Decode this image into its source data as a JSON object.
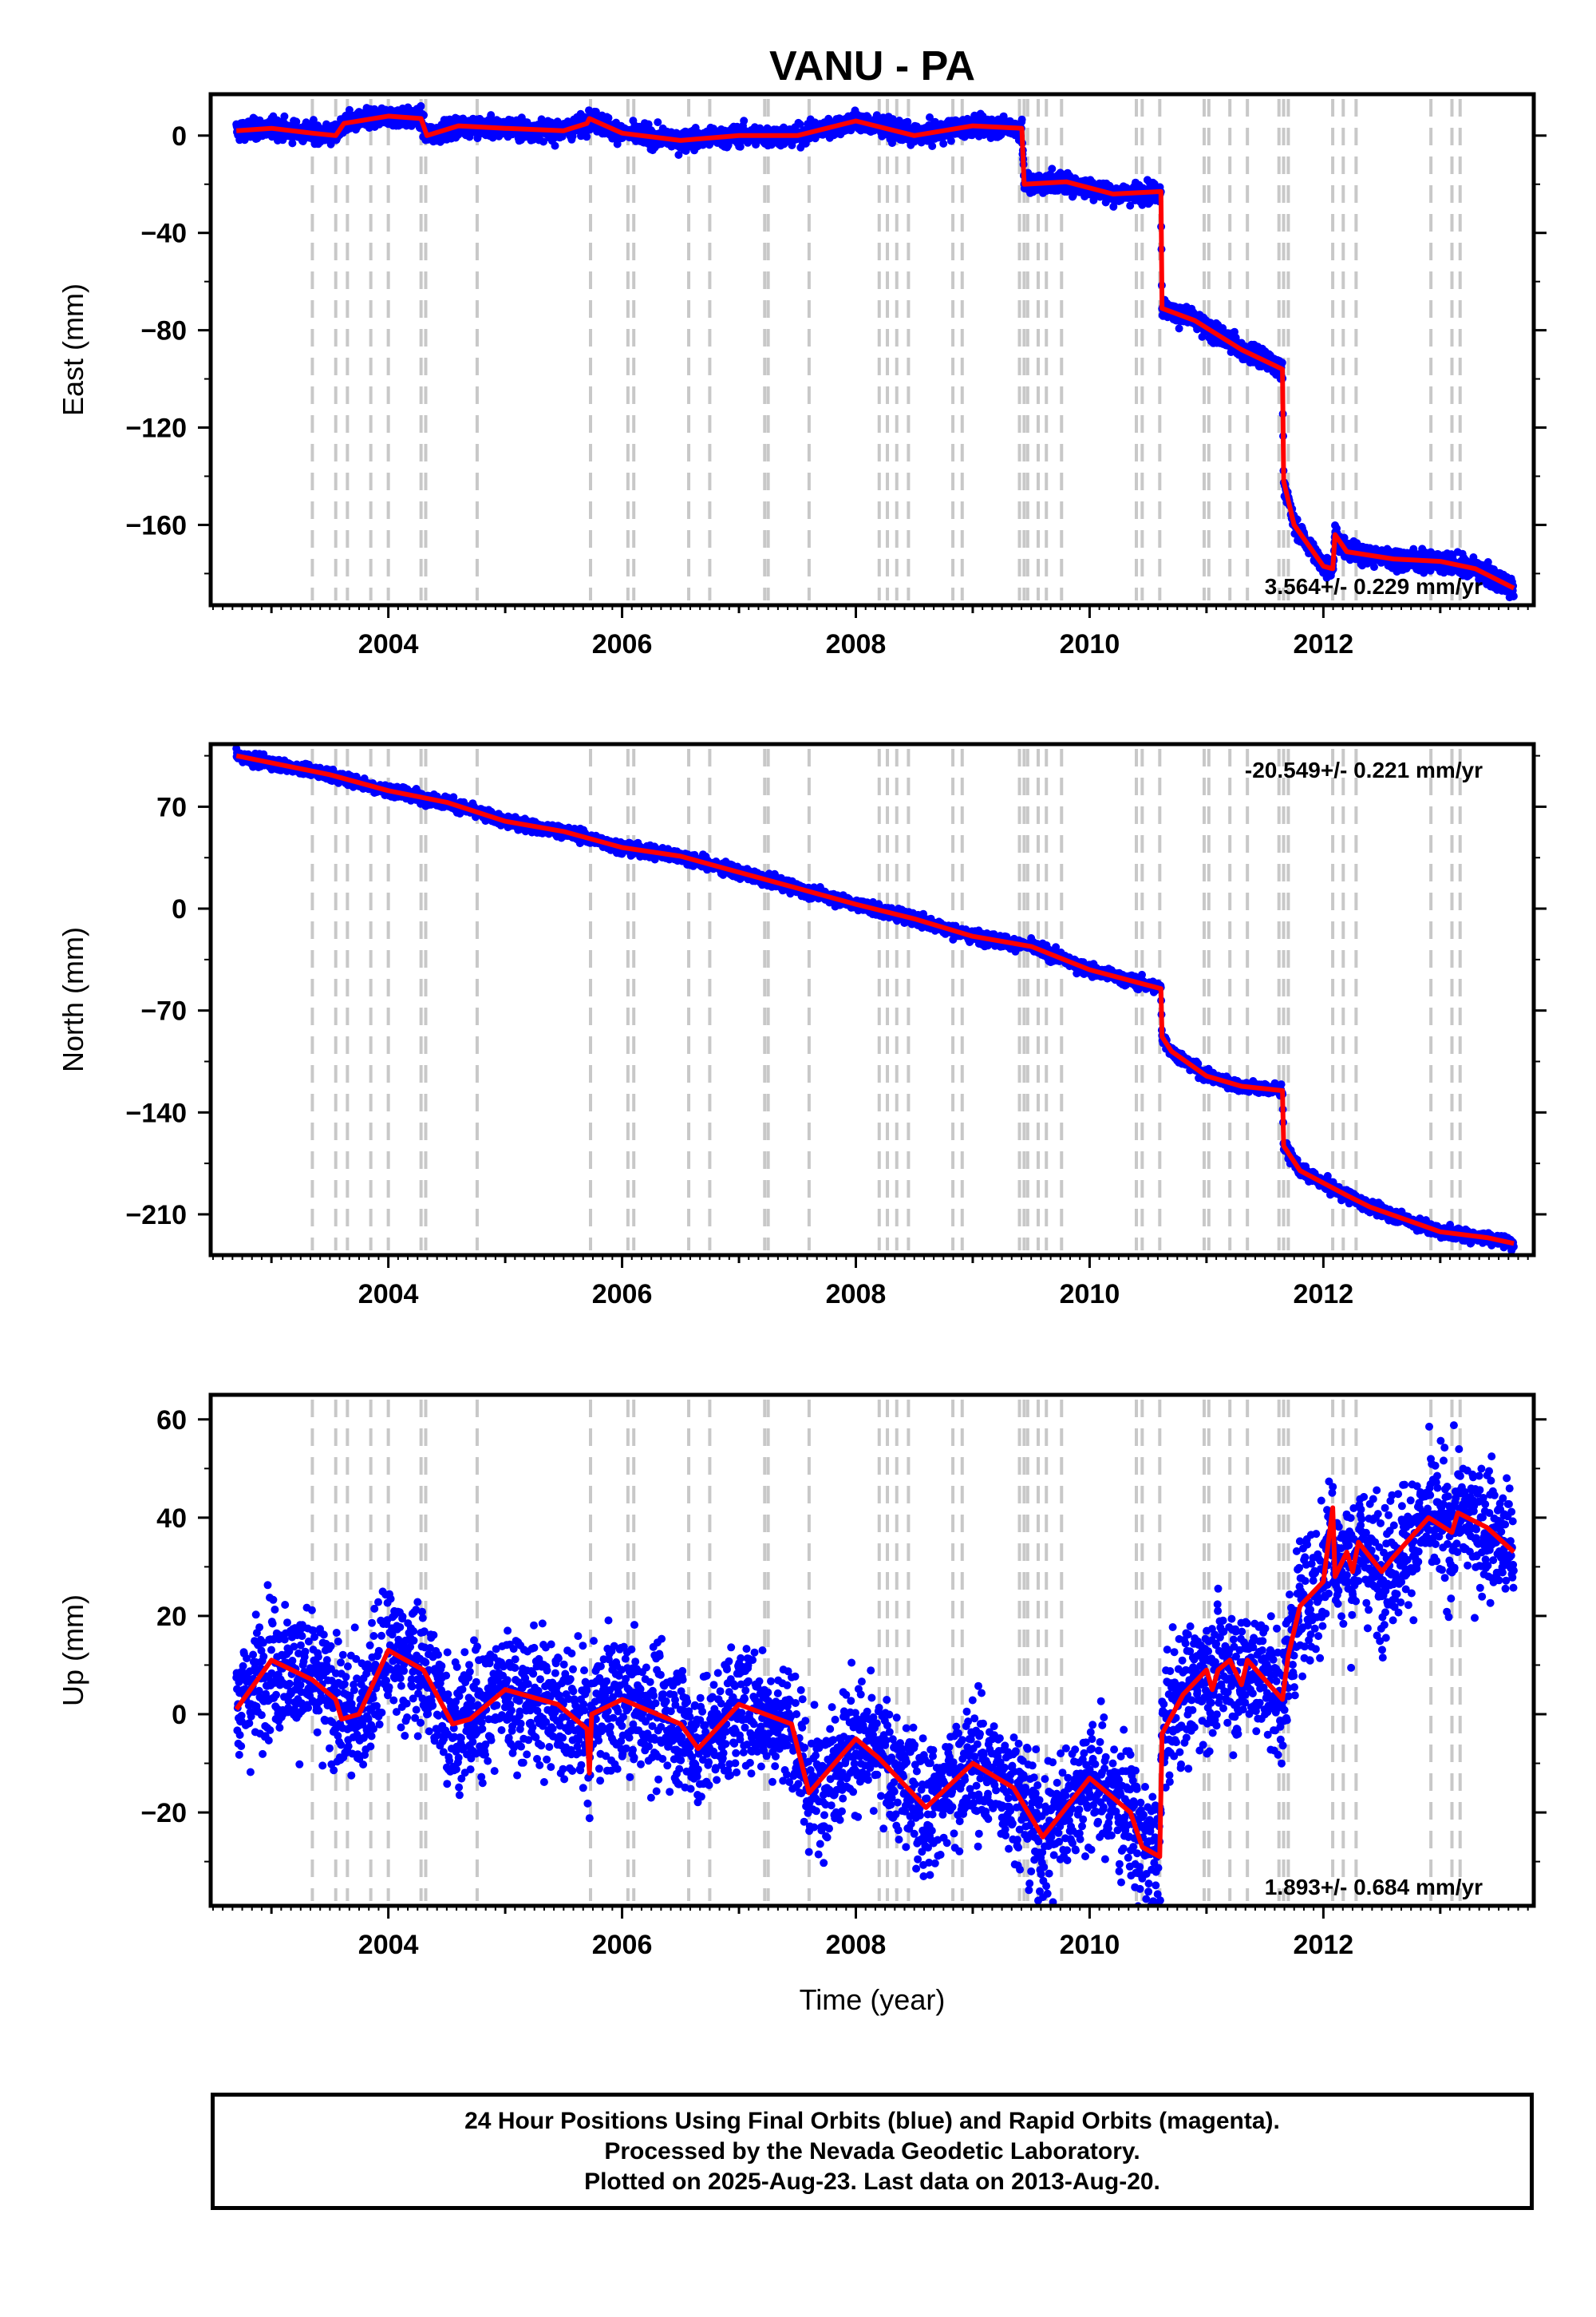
{
  "title": "VANU - PA",
  "colors": {
    "observation": "#0000ff",
    "model": "#ff0000",
    "event_line": "#c8c8c8",
    "frame": "#000000"
  },
  "chart_data": [
    {
      "type": "scatter",
      "component": "East",
      "ylabel": "East (mm)",
      "xlim": [
        2002.48,
        2013.8
      ],
      "ylim": [
        -193,
        17
      ],
      "yticks": [
        0,
        -40,
        -80,
        -120,
        -160
      ],
      "xticks": [
        2004,
        2006,
        2008,
        2010,
        2012
      ],
      "grid": false,
      "rate_label": "3.564+/- 0.229 mm/yr",
      "rate_position": "bottom-right",
      "noise_mm": 2.0,
      "model": [
        [
          2002.7,
          2
        ],
        [
          2003.0,
          3
        ],
        [
          2003.35,
          1
        ],
        [
          2003.55,
          0
        ],
        [
          2003.62,
          5
        ],
        [
          2004.0,
          8
        ],
        [
          2004.28,
          7
        ],
        [
          2004.33,
          0
        ],
        [
          2004.6,
          4
        ],
        [
          2005.0,
          3
        ],
        [
          2005.5,
          2
        ],
        [
          2005.7,
          5
        ],
        [
          2005.72,
          7
        ],
        [
          2006.0,
          1
        ],
        [
          2006.5,
          -2
        ],
        [
          2007.0,
          0
        ],
        [
          2007.5,
          0
        ],
        [
          2008.0,
          6
        ],
        [
          2008.5,
          0
        ],
        [
          2009.0,
          4
        ],
        [
          2009.42,
          3
        ],
        [
          2009.44,
          -20
        ],
        [
          2009.8,
          -19
        ],
        [
          2010.2,
          -24
        ],
        [
          2010.61,
          -23
        ],
        [
          2010.62,
          -71
        ],
        [
          2010.9,
          -76
        ],
        [
          2011.3,
          -88
        ],
        [
          2011.65,
          -96
        ],
        [
          2011.66,
          -142
        ],
        [
          2011.75,
          -160
        ],
        [
          2012.0,
          -177
        ],
        [
          2012.08,
          -178
        ],
        [
          2012.1,
          -164
        ],
        [
          2012.2,
          -171
        ],
        [
          2012.6,
          -174
        ],
        [
          2013.0,
          -175
        ],
        [
          2013.3,
          -178
        ],
        [
          2013.63,
          -186
        ]
      ]
    },
    {
      "type": "scatter",
      "component": "North",
      "ylabel": "North (mm)",
      "xlim": [
        2002.48,
        2013.8
      ],
      "ylim": [
        -238,
        113
      ],
      "yticks": [
        70,
        0,
        -70,
        -140,
        -210
      ],
      "xticks": [
        2004,
        2006,
        2008,
        2010,
        2012
      ],
      "grid": false,
      "rate_label": "-20.549+/- 0.221 mm/yr",
      "rate_position": "top-right",
      "noise_mm": 2.0,
      "model": [
        [
          2002.7,
          105
        ],
        [
          2003.5,
          92
        ],
        [
          2004.0,
          81
        ],
        [
          2004.5,
          73
        ],
        [
          2005.0,
          60
        ],
        [
          2005.5,
          53
        ],
        [
          2006.0,
          42
        ],
        [
          2006.5,
          36
        ],
        [
          2007.0,
          25
        ],
        [
          2007.5,
          14
        ],
        [
          2008.0,
          3
        ],
        [
          2008.5,
          -7
        ],
        [
          2009.0,
          -19
        ],
        [
          2009.5,
          -26
        ],
        [
          2010.0,
          -42
        ],
        [
          2010.61,
          -55
        ],
        [
          2010.62,
          -88
        ],
        [
          2010.7,
          -98
        ],
        [
          2011.0,
          -115
        ],
        [
          2011.3,
          -122
        ],
        [
          2011.65,
          -125
        ],
        [
          2011.66,
          -163
        ],
        [
          2011.8,
          -180
        ],
        [
          2012.2,
          -197
        ],
        [
          2012.4,
          -205
        ],
        [
          2013.0,
          -222
        ],
        [
          2013.4,
          -226
        ],
        [
          2013.63,
          -230
        ]
      ]
    },
    {
      "type": "scatter",
      "component": "Up",
      "ylabel": "Up (mm)",
      "xlim": [
        2002.48,
        2013.8
      ],
      "ylim": [
        -39,
        65
      ],
      "yticks": [
        60,
        40,
        20,
        0,
        -20
      ],
      "xticks": [
        2004,
        2006,
        2008,
        2010,
        2012
      ],
      "grid": false,
      "rate_label": "1.893+/- 0.684 mm/yr",
      "rate_position": "bottom-right",
      "noise_mm": 6.5,
      "model": [
        [
          2002.7,
          1
        ],
        [
          2003.0,
          11
        ],
        [
          2003.35,
          7
        ],
        [
          2003.55,
          3
        ],
        [
          2003.6,
          -1
        ],
        [
          2003.75,
          0
        ],
        [
          2004.0,
          13
        ],
        [
          2004.3,
          9
        ],
        [
          2004.55,
          -2
        ],
        [
          2004.7,
          -1
        ],
        [
          2005.0,
          5
        ],
        [
          2005.45,
          2
        ],
        [
          2005.7,
          -3
        ],
        [
          2005.72,
          -12
        ],
        [
          2005.74,
          0
        ],
        [
          2006.0,
          3
        ],
        [
          2006.5,
          -2
        ],
        [
          2006.65,
          -7
        ],
        [
          2007.0,
          2
        ],
        [
          2007.45,
          -2
        ],
        [
          2007.6,
          -16
        ],
        [
          2008.0,
          -5
        ],
        [
          2008.2,
          -9
        ],
        [
          2008.6,
          -19
        ],
        [
          2009.0,
          -10
        ],
        [
          2009.35,
          -15
        ],
        [
          2009.6,
          -25
        ],
        [
          2010.0,
          -13
        ],
        [
          2010.35,
          -20
        ],
        [
          2010.45,
          -27
        ],
        [
          2010.6,
          -29
        ],
        [
          2010.62,
          -4
        ],
        [
          2010.8,
          4
        ],
        [
          2011.0,
          9
        ],
        [
          2011.05,
          5
        ],
        [
          2011.1,
          9
        ],
        [
          2011.2,
          11
        ],
        [
          2011.3,
          6
        ],
        [
          2011.35,
          11
        ],
        [
          2011.65,
          3
        ],
        [
          2011.7,
          12
        ],
        [
          2011.8,
          22
        ],
        [
          2012.0,
          27
        ],
        [
          2012.08,
          42
        ],
        [
          2012.1,
          28
        ],
        [
          2012.2,
          33
        ],
        [
          2012.25,
          29
        ],
        [
          2012.3,
          35
        ],
        [
          2012.5,
          29
        ],
        [
          2012.6,
          32
        ],
        [
          2012.9,
          40
        ],
        [
          2013.1,
          37
        ],
        [
          2013.15,
          41
        ],
        [
          2013.4,
          38
        ],
        [
          2013.63,
          33
        ]
      ]
    }
  ],
  "event_lines": [
    2003.35,
    2003.55,
    2003.65,
    2003.85,
    2004.0,
    2004.28,
    2004.32,
    2004.76,
    2005.73,
    2006.05,
    2006.1,
    2006.57,
    2006.75,
    2007.22,
    2007.25,
    2007.6,
    2008.2,
    2008.27,
    2008.35,
    2008.45,
    2008.83,
    2008.91,
    2009.4,
    2009.44,
    2009.47,
    2009.56,
    2009.63,
    2009.76,
    2010.4,
    2010.45,
    2010.6,
    2010.98,
    2011.02,
    2011.2,
    2011.35,
    2011.62,
    2011.66,
    2011.7,
    2012.08,
    2012.17,
    2012.28,
    2012.92,
    2013.1,
    2013.17
  ],
  "xlabel": "Time (year)",
  "footer": {
    "line1": "24 Hour Positions Using Final Orbits (blue) and Rapid Orbits (magenta).",
    "line2": "Processed by the Nevada Geodetic Laboratory.",
    "line3": "Plotted on 2025-Aug-23. Last data on 2013-Aug-20."
  }
}
